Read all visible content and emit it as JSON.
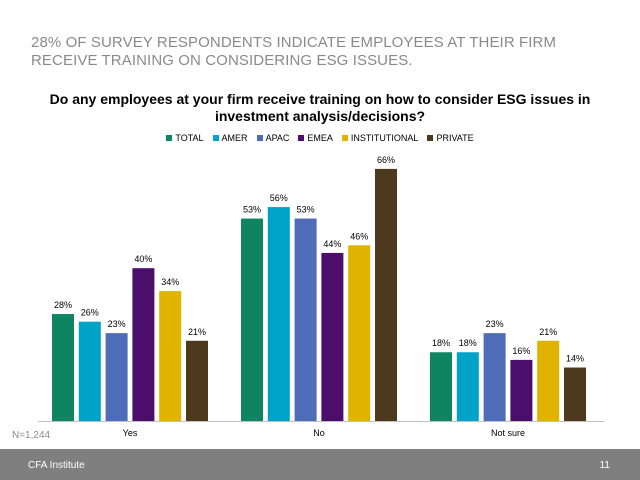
{
  "slide": {
    "headline": "28% OF SURVEY RESPONDENTS INDICATE EMPLOYEES AT THEIR FIRM RECEIVE TRAINING ON CONSIDERING ESG ISSUES.",
    "n_label": "N=1,244",
    "footer_org": "CFA Institute",
    "page_number": "11"
  },
  "chart_data": {
    "type": "bar",
    "title": "Do any employees at your firm receive training on how to consider ESG issues in investment analysis/decisions?",
    "categories": [
      "Yes",
      "No",
      "Not sure"
    ],
    "series": [
      {
        "name": "TOTAL",
        "color": "#0e8460",
        "values": [
          28,
          53,
          18
        ]
      },
      {
        "name": "AMER",
        "color": "#00a3c8",
        "values": [
          26,
          56,
          18
        ]
      },
      {
        "name": "APAC",
        "color": "#4e6cb8",
        "values": [
          23,
          53,
          23
        ]
      },
      {
        "name": "EMEA",
        "color": "#4b0f6b",
        "values": [
          40,
          44,
          16
        ]
      },
      {
        "name": "INSTITUTIONAL",
        "color": "#e0b300",
        "values": [
          34,
          46,
          21
        ]
      },
      {
        "name": "PRIVATE",
        "color": "#4d3a1e",
        "values": [
          21,
          66,
          14
        ]
      }
    ],
    "value_suffix": "%",
    "ylim": [
      0,
      70
    ],
    "legend_position": "top-center",
    "grid": false
  }
}
